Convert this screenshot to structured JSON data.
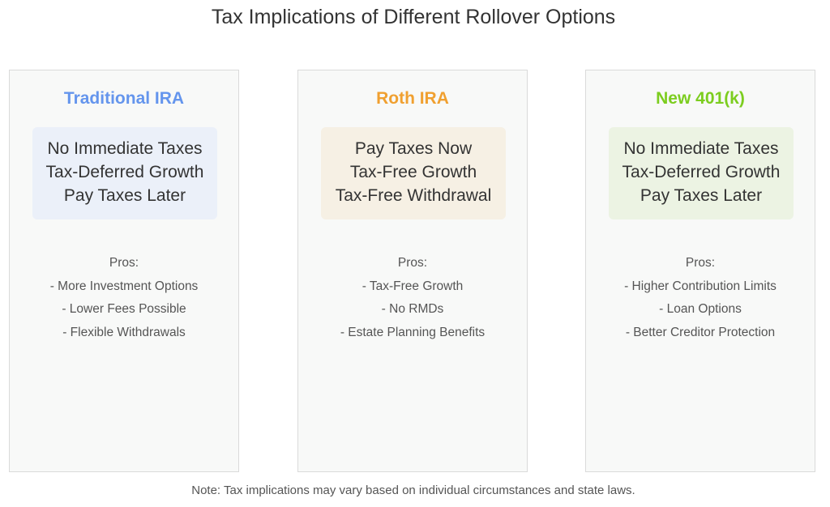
{
  "title": "Tax Implications of Different Rollover Options",
  "cards": [
    {
      "heading": "Traditional IRA",
      "heading_color": "#6495ed",
      "box_color": "#ebf0f9",
      "summary": [
        "No Immediate Taxes",
        "Tax-Deferred Growth",
        "Pay Taxes Later"
      ],
      "pros_label": "Pros:",
      "pros": [
        "- More Investment Options",
        "- Lower Fees Possible",
        "- Flexible Withdrawals"
      ]
    },
    {
      "heading": "Roth IRA",
      "heading_color": "#f0a030",
      "box_color": "#f6f0e4",
      "summary": [
        "Pay Taxes Now",
        "Tax-Free Growth",
        "Tax-Free Withdrawal"
      ],
      "pros_label": "Pros:",
      "pros": [
        "- Tax-Free Growth",
        "- No RMDs",
        "- Estate Planning Benefits"
      ]
    },
    {
      "heading": "New 401(k)",
      "heading_color": "#7ccd1f",
      "box_color": "#ecf3e3",
      "summary": [
        "No Immediate Taxes",
        "Tax-Deferred Growth",
        "Pay Taxes Later"
      ],
      "pros_label": "Pros:",
      "pros": [
        "- Higher Contribution Limits",
        "- Loan Options",
        "- Better Creditor Protection"
      ]
    }
  ],
  "note": "Note: Tax implications may vary based on individual circumstances and state laws."
}
